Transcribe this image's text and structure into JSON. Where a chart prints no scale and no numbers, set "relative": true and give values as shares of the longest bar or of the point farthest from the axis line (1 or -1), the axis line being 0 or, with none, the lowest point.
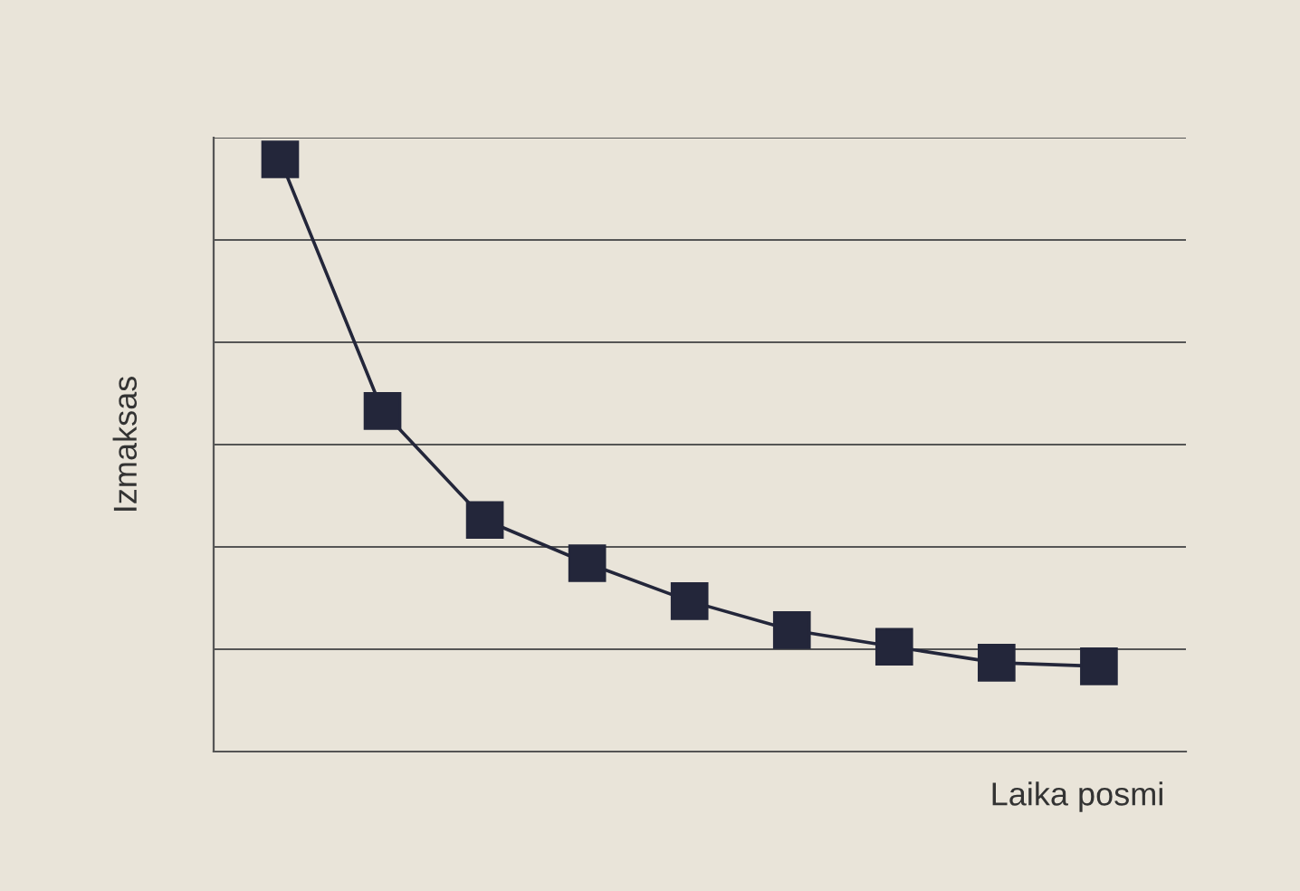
{
  "chart_data": {
    "type": "line",
    "relative": true,
    "xlabel": "Laika posmi",
    "ylabel": "Izmaksas",
    "categories": [
      null,
      null,
      null,
      null,
      null,
      null,
      null,
      null,
      null
    ],
    "series": [
      {
        "color": "#23263a",
        "values": [
          1,
          0.575,
          0.391,
          0.318,
          0.254,
          0.205,
          0.177,
          0.15,
          0.144
        ]
      }
    ],
    "marker": "square",
    "line_style": "solid",
    "grid": "y"
  }
}
